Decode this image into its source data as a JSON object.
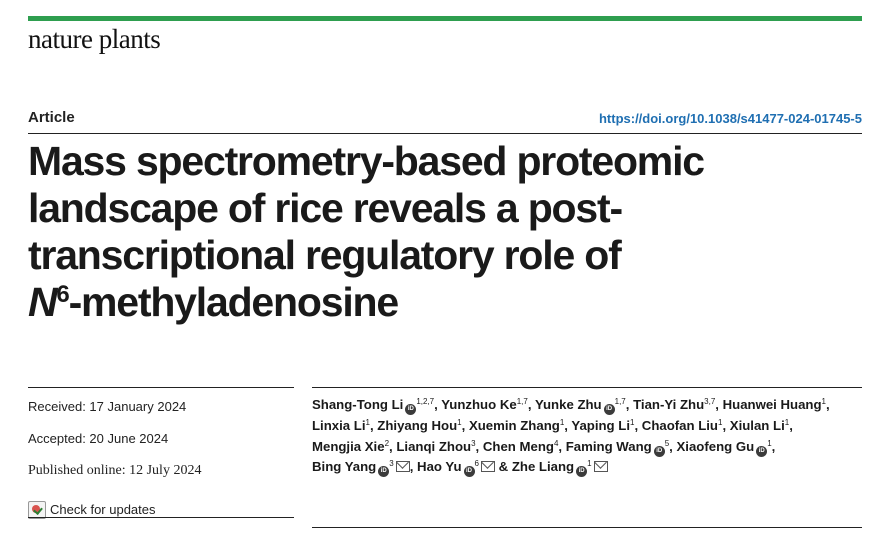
{
  "header": {
    "journal_name": "nature plants",
    "article_type": "Article",
    "doi": "https://doi.org/10.1038/s41477-024-01745-5"
  },
  "title": {
    "line1": "Mass spectrometry-based proteomic",
    "line2": "landscape of rice reveals a post-",
    "line3": "transcriptional regulatory role of",
    "line4_italic": "N",
    "line4_sup": "6",
    "line4_rest": "-methyladenosine"
  },
  "dates": {
    "received": "Received: 17 January 2024",
    "accepted": "Accepted: 20 June 2024",
    "published": "Published online: 12 July 2024",
    "check_updates": "Check for updates"
  },
  "authors": [
    {
      "name": "Shang-Tong Li",
      "orcid": true,
      "aff": "1,2,7",
      "mail": false,
      "sep": ","
    },
    {
      "name": "Yunzhuo Ke",
      "orcid": false,
      "aff": "1,7",
      "mail": false,
      "sep": ","
    },
    {
      "name": "Yunke Zhu",
      "orcid": true,
      "aff": "1,7",
      "mail": false,
      "sep": ","
    },
    {
      "name": "Tian-Yi Zhu",
      "orcid": false,
      "aff": "3,7",
      "mail": false,
      "sep": ","
    },
    {
      "name": "Huanwei Huang",
      "orcid": false,
      "aff": "1",
      "mail": false,
      "sep": ","
    },
    {
      "name": "Linxia Li",
      "orcid": false,
      "aff": "1",
      "mail": false,
      "sep": ","
    },
    {
      "name": "Zhiyang Hou",
      "orcid": false,
      "aff": "1",
      "mail": false,
      "sep": ","
    },
    {
      "name": "Xuemin Zhang",
      "orcid": false,
      "aff": "1",
      "mail": false,
      "sep": ","
    },
    {
      "name": "Yaping Li",
      "orcid": false,
      "aff": "1",
      "mail": false,
      "sep": ","
    },
    {
      "name": "Chaofan Liu",
      "orcid": false,
      "aff": "1",
      "mail": false,
      "sep": ","
    },
    {
      "name": "Xiulan Li",
      "orcid": false,
      "aff": "1",
      "mail": false,
      "sep": ","
    },
    {
      "name": "Mengjia Xie",
      "orcid": false,
      "aff": "2",
      "mail": false,
      "sep": ","
    },
    {
      "name": "Lianqi Zhou",
      "orcid": false,
      "aff": "3",
      "mail": false,
      "sep": ","
    },
    {
      "name": "Chen Meng",
      "orcid": false,
      "aff": "4",
      "mail": false,
      "sep": ","
    },
    {
      "name": "Faming Wang",
      "orcid": true,
      "aff": "5",
      "mail": false,
      "sep": ","
    },
    {
      "name": "Xiaofeng Gu",
      "orcid": true,
      "aff": "1",
      "mail": false,
      "sep": ","
    },
    {
      "name": "Bing Yang",
      "orcid": true,
      "aff": "3",
      "mail": true,
      "sep": ","
    },
    {
      "name": "Hao Yu",
      "orcid": true,
      "aff": "6",
      "mail": true,
      "sep": " &"
    },
    {
      "name": "Zhe Liang",
      "orcid": true,
      "aff": "1",
      "mail": true,
      "sep": ""
    }
  ],
  "icons": {
    "orcid": "orcid-icon",
    "mail": "mail-icon",
    "check": "check-updates-icon"
  },
  "colors": {
    "topbar": "#2e9e4f",
    "doi_link": "#1f6fb2"
  }
}
